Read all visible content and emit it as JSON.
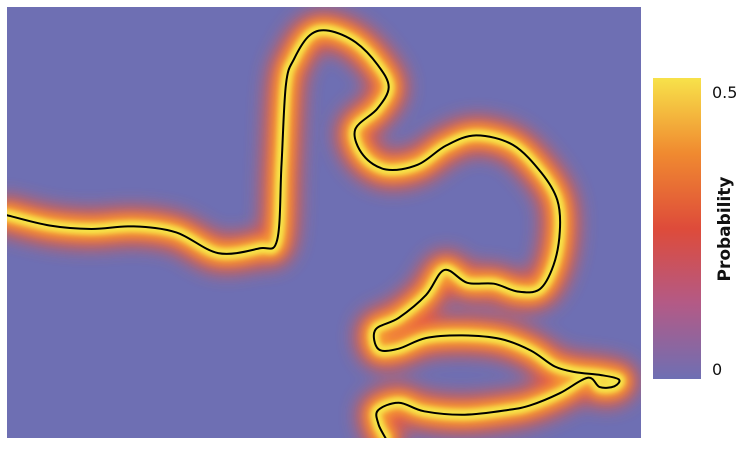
{
  "chart_data": {
    "type": "heatmap",
    "title": "",
    "xlabel": "",
    "ylabel": "",
    "colorbar": {
      "label": "Probability",
      "range": [
        0,
        0.5
      ],
      "ticks": [
        {
          "value": 0.5,
          "label": "0.5"
        },
        {
          "value": 0,
          "label": "0"
        }
      ],
      "colors": [
        "#6e6fb3",
        "#b35a86",
        "#de4b3a",
        "#f08a30",
        "#f7e24a"
      ]
    },
    "background_color": "#6e6fb3",
    "curve": {
      "description_visible": false,
      "stroke_color": "#000000",
      "glow_colors": [
        "#ef5a3a",
        "#f7a033",
        "#f7e44a"
      ],
      "x_range": [
        0,
        1
      ],
      "y_range": [
        0,
        1
      ],
      "points": [
        [
          0.0,
          0.517
        ],
        [
          0.067,
          0.493
        ],
        [
          0.133,
          0.485
        ],
        [
          0.2,
          0.491
        ],
        [
          0.267,
          0.477
        ],
        [
          0.333,
          0.429
        ],
        [
          0.398,
          0.44
        ],
        [
          0.426,
          0.459
        ],
        [
          0.433,
          0.634
        ],
        [
          0.44,
          0.821
        ],
        [
          0.453,
          0.88
        ],
        [
          0.478,
          0.935
        ],
        [
          0.508,
          0.945
        ],
        [
          0.55,
          0.918
        ],
        [
          0.585,
          0.865
        ],
        [
          0.602,
          0.814
        ],
        [
          0.584,
          0.764
        ],
        [
          0.549,
          0.715
        ],
        [
          0.562,
          0.656
        ],
        [
          0.598,
          0.623
        ],
        [
          0.648,
          0.634
        ],
        [
          0.693,
          0.679
        ],
        [
          0.74,
          0.702
        ],
        [
          0.798,
          0.68
        ],
        [
          0.843,
          0.615
        ],
        [
          0.868,
          0.552
        ],
        [
          0.872,
          0.479
        ],
        [
          0.862,
          0.401
        ],
        [
          0.84,
          0.345
        ],
        [
          0.805,
          0.34
        ],
        [
          0.768,
          0.358
        ],
        [
          0.726,
          0.36
        ],
        [
          0.69,
          0.39
        ],
        [
          0.661,
          0.332
        ],
        [
          0.618,
          0.279
        ],
        [
          0.581,
          0.251
        ],
        [
          0.586,
          0.206
        ],
        [
          0.617,
          0.207
        ],
        [
          0.661,
          0.232
        ],
        [
          0.718,
          0.238
        ],
        [
          0.778,
          0.23
        ],
        [
          0.826,
          0.203
        ],
        [
          0.864,
          0.166
        ],
        [
          0.896,
          0.153
        ],
        [
          0.937,
          0.146
        ],
        [
          0.965,
          0.136
        ],
        [
          0.958,
          0.12
        ],
        [
          0.935,
          0.118
        ],
        [
          0.916,
          0.14
        ],
        [
          0.872,
          0.104
        ],
        [
          0.826,
          0.076
        ],
        [
          0.79,
          0.065
        ],
        [
          0.722,
          0.054
        ],
        [
          0.658,
          0.062
        ],
        [
          0.618,
          0.082
        ],
        [
          0.585,
          0.064
        ],
        [
          0.586,
          0.032
        ],
        [
          0.597,
          0.0
        ]
      ]
    }
  }
}
